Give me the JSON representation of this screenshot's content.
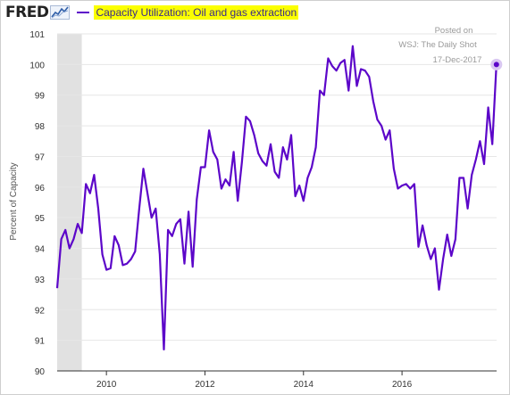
{
  "header": {
    "logo": "FRED",
    "logo_icon": "line-chart-icon"
  },
  "colors": {
    "series": "#5c06c9",
    "recession": "#e1e1e1",
    "highlight": "#fbff00",
    "grid": "#e6e6e6"
  },
  "annotation": [
    "Posted on",
    "WSJ: The Daily Shot",
    "17-Dec-2017"
  ],
  "chart_data": {
    "type": "line",
    "title": "",
    "ylabel": "Percent of Capacity",
    "xlabel": "",
    "ylim": [
      90,
      101
    ],
    "xlim": [
      2009.0,
      2017.92
    ],
    "yticks": [
      90,
      91,
      92,
      93,
      94,
      95,
      96,
      97,
      98,
      99,
      100,
      101
    ],
    "xticks": [
      2010,
      2012,
      2014,
      2016
    ],
    "grid": "horizontal",
    "recession_shading": [
      [
        2009.0,
        2009.5
      ]
    ],
    "series": [
      {
        "name": "Capacity Utilization: Oil and gas extraction",
        "frequency": "monthly",
        "start": "2009-01",
        "values": [
          92.7,
          94.3,
          94.6,
          94.0,
          94.3,
          94.8,
          94.5,
          96.1,
          95.8,
          96.4,
          95.3,
          93.8,
          93.3,
          93.35,
          94.4,
          94.1,
          93.45,
          93.5,
          93.65,
          93.9,
          95.3,
          96.6,
          95.8,
          95.0,
          95.3,
          93.8,
          90.7,
          94.6,
          94.4,
          94.8,
          94.95,
          93.5,
          95.2,
          93.4,
          95.6,
          96.65,
          96.65,
          97.85,
          97.15,
          96.9,
          95.95,
          96.25,
          96.05,
          97.15,
          95.55,
          96.8,
          98.3,
          98.15,
          97.7,
          97.1,
          96.85,
          96.7,
          97.4,
          96.5,
          96.3,
          97.3,
          96.9,
          97.7,
          95.7,
          96.05,
          95.55,
          96.3,
          96.65,
          97.3,
          99.15,
          99.0,
          100.2,
          99.95,
          99.8,
          100.05,
          100.15,
          99.15,
          100.6,
          99.3,
          99.85,
          99.8,
          99.6,
          98.8,
          98.2,
          98.0,
          97.55,
          97.85,
          96.6,
          95.95,
          96.05,
          96.1,
          95.95,
          96.1,
          94.05,
          94.75,
          94.1,
          93.65,
          94.0,
          92.65,
          93.65,
          94.45,
          93.75,
          94.3,
          96.3,
          96.3,
          95.3,
          96.4,
          96.9,
          97.5,
          96.75,
          98.6,
          97.4,
          100.0
        ]
      }
    ]
  }
}
